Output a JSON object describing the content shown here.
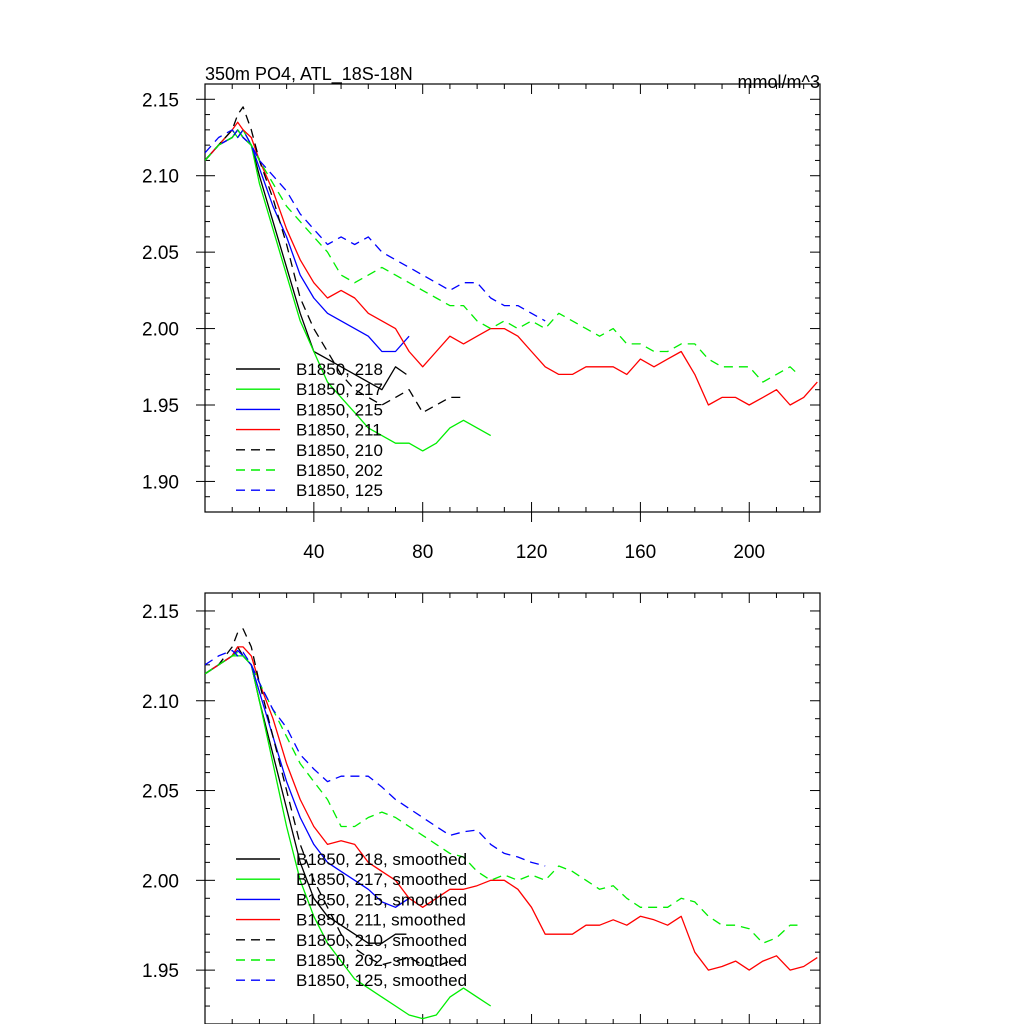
{
  "chart_data": [
    {
      "type": "line",
      "title": "350m PO4, ATL_18S-18N",
      "units": "mmol/m^3",
      "xlim": [
        0,
        226
      ],
      "ylim": [
        1.88,
        2.16
      ],
      "x_ticks": [
        40,
        80,
        120,
        160,
        200
      ],
      "x_tick_labels": [
        "40",
        "80",
        "120",
        "160",
        "200"
      ],
      "y_ticks": [
        1.9,
        1.95,
        2.0,
        2.05,
        2.1,
        2.15
      ],
      "y_tick_labels": [
        "1.90",
        "1.95",
        "2.00",
        "2.05",
        "2.10",
        "2.15"
      ],
      "legend_position": "lower-left",
      "series": [
        {
          "name": "B1850, 218",
          "color": "#000000",
          "dash": "solid",
          "x": [
            0,
            5,
            10,
            12,
            14,
            17,
            20,
            25,
            30,
            35,
            40,
            45,
            50,
            55,
            60,
            65,
            70,
            74
          ],
          "y": [
            2.11,
            2.12,
            2.125,
            2.13,
            2.125,
            2.12,
            2.1,
            2.07,
            2.04,
            2.01,
            1.985,
            1.98,
            1.975,
            1.97,
            1.965,
            1.96,
            1.975,
            1.97
          ]
        },
        {
          "name": "B1850, 217",
          "color": "#00ee00",
          "dash": "solid",
          "x": [
            0,
            5,
            10,
            12,
            14,
            17,
            20,
            25,
            30,
            35,
            40,
            45,
            50,
            55,
            60,
            65,
            70,
            75,
            80,
            85,
            90,
            95,
            100,
            105
          ],
          "y": [
            2.11,
            2.12,
            2.13,
            2.125,
            2.13,
            2.12,
            2.095,
            2.065,
            2.035,
            2.005,
            1.985,
            1.965,
            1.955,
            1.945,
            1.935,
            1.93,
            1.925,
            1.925,
            1.92,
            1.925,
            1.935,
            1.94,
            1.935,
            1.93
          ]
        },
        {
          "name": "B1850, 215",
          "color": "#0000ff",
          "dash": "solid",
          "x": [
            0,
            5,
            10,
            12,
            14,
            17,
            20,
            25,
            30,
            35,
            40,
            45,
            50,
            55,
            60,
            65,
            70,
            75
          ],
          "y": [
            2.11,
            2.12,
            2.125,
            2.13,
            2.125,
            2.12,
            2.105,
            2.08,
            2.06,
            2.035,
            2.02,
            2.01,
            2.005,
            2.0,
            1.995,
            1.985,
            1.985,
            1.995
          ]
        },
        {
          "name": "B1850, 211",
          "color": "#ff0000",
          "dash": "solid",
          "x": [
            0,
            5,
            10,
            12,
            14,
            17,
            20,
            25,
            30,
            35,
            40,
            45,
            50,
            55,
            60,
            65,
            70,
            75,
            80,
            85,
            90,
            95,
            100,
            105,
            110,
            115,
            120,
            125,
            130,
            135,
            140,
            145,
            150,
            155,
            160,
            165,
            170,
            175,
            180,
            185,
            190,
            195,
            200,
            205,
            210,
            215,
            220,
            225
          ],
          "y": [
            2.11,
            2.12,
            2.13,
            2.135,
            2.13,
            2.125,
            2.11,
            2.09,
            2.065,
            2.045,
            2.03,
            2.02,
            2.025,
            2.02,
            2.01,
            2.005,
            2.0,
            1.985,
            1.975,
            1.985,
            1.995,
            1.99,
            1.995,
            2.0,
            2.0,
            1.995,
            1.985,
            1.975,
            1.97,
            1.97,
            1.975,
            1.975,
            1.975,
            1.97,
            1.98,
            1.975,
            1.98,
            1.985,
            1.97,
            1.95,
            1.955,
            1.955,
            1.95,
            1.955,
            1.96,
            1.95,
            1.955,
            1.965
          ]
        },
        {
          "name": "B1850, 210",
          "color": "#000000",
          "dash": "dashed",
          "x": [
            0,
            5,
            10,
            12,
            14,
            17,
            20,
            25,
            30,
            35,
            40,
            45,
            50,
            55,
            60,
            65,
            70,
            75,
            80,
            85,
            90,
            94
          ],
          "y": [
            2.11,
            2.12,
            2.13,
            2.14,
            2.145,
            2.13,
            2.11,
            2.085,
            2.055,
            2.02,
            2.0,
            1.985,
            1.97,
            1.96,
            1.955,
            1.95,
            1.955,
            1.96,
            1.945,
            1.95,
            1.955,
            1.955
          ]
        },
        {
          "name": "B1850, 202",
          "color": "#00ee00",
          "dash": "dashed",
          "x": [
            0,
            5,
            10,
            12,
            14,
            17,
            20,
            25,
            30,
            35,
            40,
            45,
            50,
            55,
            60,
            65,
            70,
            75,
            80,
            85,
            90,
            95,
            100,
            105,
            110,
            115,
            120,
            125,
            130,
            135,
            140,
            145,
            150,
            155,
            160,
            165,
            170,
            175,
            180,
            185,
            190,
            195,
            200,
            205,
            210,
            215,
            218
          ],
          "y": [
            2.11,
            2.12,
            2.125,
            2.13,
            2.125,
            2.12,
            2.11,
            2.095,
            2.08,
            2.07,
            2.06,
            2.05,
            2.035,
            2.03,
            2.035,
            2.04,
            2.035,
            2.03,
            2.025,
            2.02,
            2.015,
            2.015,
            2.005,
            2.0,
            2.005,
            2.0,
            2.005,
            2.0,
            2.01,
            2.005,
            2.0,
            1.995,
            2.0,
            1.99,
            1.99,
            1.985,
            1.985,
            1.99,
            1.99,
            1.98,
            1.975,
            1.975,
            1.975,
            1.965,
            1.97,
            1.975,
            1.97
          ]
        },
        {
          "name": "B1850, 125",
          "color": "#0000ff",
          "dash": "dashed",
          "x": [
            0,
            5,
            10,
            12,
            14,
            17,
            20,
            25,
            30,
            35,
            40,
            45,
            50,
            55,
            60,
            65,
            70,
            75,
            80,
            85,
            90,
            95,
            100,
            105,
            110,
            115,
            120,
            125
          ],
          "y": [
            2.115,
            2.125,
            2.13,
            2.125,
            2.13,
            2.12,
            2.11,
            2.1,
            2.09,
            2.075,
            2.065,
            2.055,
            2.06,
            2.055,
            2.06,
            2.05,
            2.045,
            2.04,
            2.035,
            2.03,
            2.025,
            2.03,
            2.03,
            2.02,
            2.015,
            2.015,
            2.01,
            2.005
          ]
        }
      ]
    },
    {
      "type": "line",
      "title": "",
      "xlim": [
        0,
        226
      ],
      "ylim": [
        1.92,
        2.16
      ],
      "x_ticks": [
        40,
        80,
        120,
        160,
        200
      ],
      "x_tick_labels": [],
      "y_ticks": [
        1.95,
        2.0,
        2.05,
        2.1,
        2.15
      ],
      "y_tick_labels": [
        "1.95",
        "2.00",
        "2.05",
        "2.10",
        "2.15"
      ],
      "legend_position": "lower-left",
      "series": [
        {
          "name": "B1850, 218, smoothed",
          "color": "#000000",
          "dash": "solid",
          "x": [
            0,
            5,
            10,
            12,
            14,
            17,
            20,
            25,
            30,
            35,
            40,
            45,
            50,
            55,
            60,
            65,
            70,
            74
          ],
          "y": [
            2.115,
            2.12,
            2.125,
            2.13,
            2.125,
            2.12,
            2.1,
            2.07,
            2.04,
            2.01,
            1.99,
            1.98,
            1.975,
            1.97,
            1.965,
            1.965,
            1.97,
            1.97
          ]
        },
        {
          "name": "B1850, 217, smoothed",
          "color": "#00ee00",
          "dash": "solid",
          "x": [
            0,
            5,
            10,
            12,
            14,
            17,
            20,
            25,
            30,
            35,
            40,
            45,
            50,
            55,
            60,
            65,
            70,
            75,
            80,
            85,
            90,
            95,
            100,
            105
          ],
          "y": [
            2.115,
            2.12,
            2.125,
            2.125,
            2.125,
            2.12,
            2.1,
            2.065,
            2.03,
            2.0,
            1.98,
            1.965,
            1.955,
            1.945,
            1.94,
            1.935,
            1.93,
            1.925,
            1.923,
            1.925,
            1.935,
            1.94,
            1.935,
            1.93
          ]
        },
        {
          "name": "B1850, 215, smoothed",
          "color": "#0000ff",
          "dash": "solid",
          "x": [
            0,
            5,
            10,
            12,
            14,
            17,
            20,
            25,
            30,
            35,
            40,
            45,
            50,
            55,
            60,
            65,
            70,
            75
          ],
          "y": [
            2.115,
            2.12,
            2.125,
            2.128,
            2.125,
            2.12,
            2.105,
            2.08,
            2.055,
            2.035,
            2.02,
            2.01,
            2.005,
            2.0,
            1.995,
            1.988,
            1.985,
            1.99
          ]
        },
        {
          "name": "B1850, 211, smoothed",
          "color": "#ff0000",
          "dash": "solid",
          "x": [
            0,
            5,
            10,
            12,
            14,
            17,
            20,
            25,
            30,
            35,
            40,
            45,
            50,
            55,
            60,
            65,
            70,
            75,
            80,
            85,
            90,
            95,
            100,
            105,
            110,
            115,
            120,
            125,
            130,
            135,
            140,
            145,
            150,
            155,
            160,
            165,
            170,
            175,
            180,
            185,
            190,
            195,
            200,
            205,
            210,
            215,
            220,
            225
          ],
          "y": [
            2.115,
            2.12,
            2.125,
            2.13,
            2.13,
            2.125,
            2.11,
            2.09,
            2.065,
            2.045,
            2.03,
            2.02,
            2.022,
            2.02,
            2.01,
            2.005,
            2.0,
            1.99,
            1.985,
            1.99,
            1.995,
            1.995,
            1.997,
            2.0,
            2.0,
            1.995,
            1.985,
            1.97,
            1.97,
            1.97,
            1.975,
            1.975,
            1.978,
            1.975,
            1.98,
            1.978,
            1.975,
            1.98,
            1.96,
            1.95,
            1.952,
            1.955,
            1.95,
            1.955,
            1.958,
            1.95,
            1.952,
            1.957
          ]
        },
        {
          "name": "B1850, 210, smoothed",
          "color": "#000000",
          "dash": "dashed",
          "x": [
            0,
            5,
            10,
            12,
            14,
            17,
            20,
            25,
            30,
            35,
            40,
            45,
            50,
            55,
            60,
            65,
            70,
            75,
            80,
            85,
            90,
            94
          ],
          "y": [
            2.115,
            2.12,
            2.13,
            2.138,
            2.14,
            2.13,
            2.11,
            2.08,
            2.05,
            2.02,
            2.0,
            1.985,
            1.97,
            1.962,
            1.957,
            1.953,
            1.955,
            1.957,
            1.953,
            1.952,
            1.955,
            1.955
          ]
        },
        {
          "name": "B1850, 202, smoothed",
          "color": "#00ee00",
          "dash": "dashed",
          "x": [
            0,
            5,
            10,
            12,
            14,
            17,
            20,
            25,
            30,
            35,
            40,
            45,
            50,
            55,
            60,
            65,
            70,
            75,
            80,
            85,
            90,
            95,
            100,
            105,
            110,
            115,
            120,
            125,
            130,
            135,
            140,
            145,
            150,
            155,
            160,
            165,
            170,
            175,
            180,
            185,
            190,
            195,
            200,
            205,
            210,
            215,
            218
          ],
          "y": [
            2.115,
            2.12,
            2.125,
            2.127,
            2.125,
            2.12,
            2.11,
            2.095,
            2.08,
            2.065,
            2.055,
            2.045,
            2.03,
            2.03,
            2.035,
            2.038,
            2.035,
            2.03,
            2.025,
            2.02,
            2.015,
            2.013,
            2.005,
            2.0,
            2.003,
            2.0,
            2.003,
            2.0,
            2.008,
            2.005,
            2.0,
            1.995,
            1.997,
            1.99,
            1.985,
            1.985,
            1.985,
            1.99,
            1.988,
            1.98,
            1.975,
            1.975,
            1.973,
            1.965,
            1.968,
            1.975,
            1.975
          ]
        },
        {
          "name": "B1850, 125, smoothed",
          "color": "#0000ff",
          "dash": "dashed",
          "x": [
            0,
            5,
            10,
            12,
            14,
            17,
            20,
            25,
            30,
            35,
            40,
            45,
            50,
            55,
            60,
            65,
            70,
            75,
            80,
            85,
            90,
            95,
            100,
            105,
            110,
            115,
            120,
            125
          ],
          "y": [
            2.12,
            2.125,
            2.128,
            2.125,
            2.127,
            2.12,
            2.11,
            2.095,
            2.085,
            2.07,
            2.062,
            2.055,
            2.058,
            2.058,
            2.058,
            2.052,
            2.045,
            2.04,
            2.035,
            2.03,
            2.025,
            2.027,
            2.028,
            2.02,
            2.015,
            2.013,
            2.01,
            2.008
          ]
        }
      ]
    }
  ]
}
